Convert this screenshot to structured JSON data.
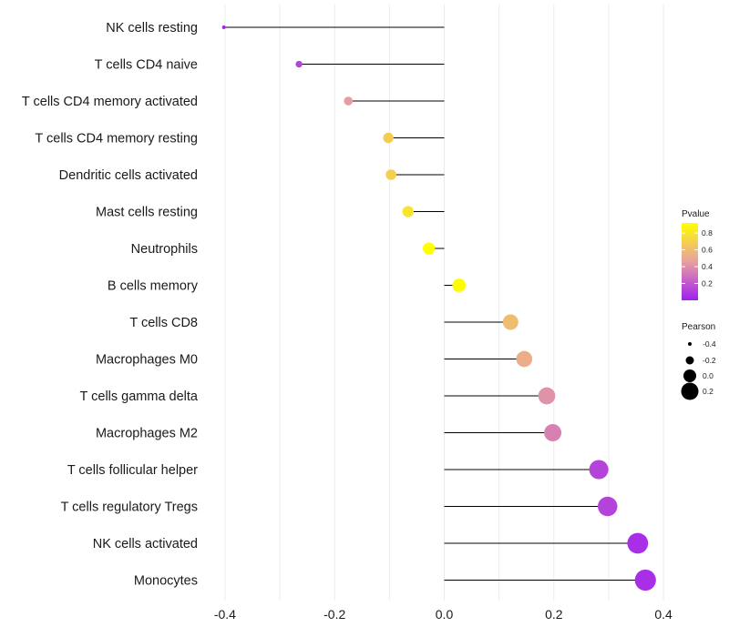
{
  "chart_data": {
    "type": "lollipop",
    "title": "",
    "xlabel": "",
    "ylabel": "",
    "xlim": [
      -0.44,
      0.44
    ],
    "x_ticks": [
      -0.4,
      -0.2,
      0.0,
      0.2,
      0.4
    ],
    "x_tick_labels": [
      "-0.4",
      "-0.2",
      "0.0",
      "0.2",
      "0.4"
    ],
    "categories": [
      "NK cells resting",
      "T cells CD4 naive",
      "T cells CD4 memory activated",
      "T cells CD4 memory resting",
      "Dendritic cells activated",
      "Mast cells resting",
      "Neutrophils",
      "B cells memory",
      "T cells CD8",
      "Macrophages M0",
      "T cells gamma delta",
      "Macrophages M2",
      "T cells follicular helper",
      "T cells regulatory  Tregs ",
      "NK cells activated",
      "Monocytes"
    ],
    "pearson": [
      -0.402,
      -0.265,
      -0.175,
      -0.102,
      -0.097,
      -0.066,
      -0.028,
      0.027,
      0.121,
      0.146,
      0.187,
      0.198,
      0.282,
      0.298,
      0.353,
      0.367
    ],
    "pvalue": [
      0.02,
      0.13,
      0.45,
      0.68,
      0.69,
      0.79,
      0.92,
      0.9,
      0.6,
      0.53,
      0.41,
      0.35,
      0.13,
      0.13,
      0.05,
      0.05
    ],
    "legend_pvalue": {
      "title": "Pvalue",
      "ticks": [
        "0.8",
        "0.6",
        "0.4",
        "0.2"
      ],
      "tick_values": [
        0.8,
        0.6,
        0.4,
        0.2
      ],
      "range": [
        0.0,
        0.92
      ],
      "colors": {
        "low": "#a020f0",
        "mid": "#e8a0a0",
        "high": "#ffff00"
      }
    },
    "legend_pearson": {
      "title": "Pearson",
      "labels": [
        "-0.4",
        "-0.2",
        "0.0",
        "0.2"
      ],
      "values": [
        -0.4,
        -0.2,
        0.0,
        0.2
      ]
    }
  }
}
